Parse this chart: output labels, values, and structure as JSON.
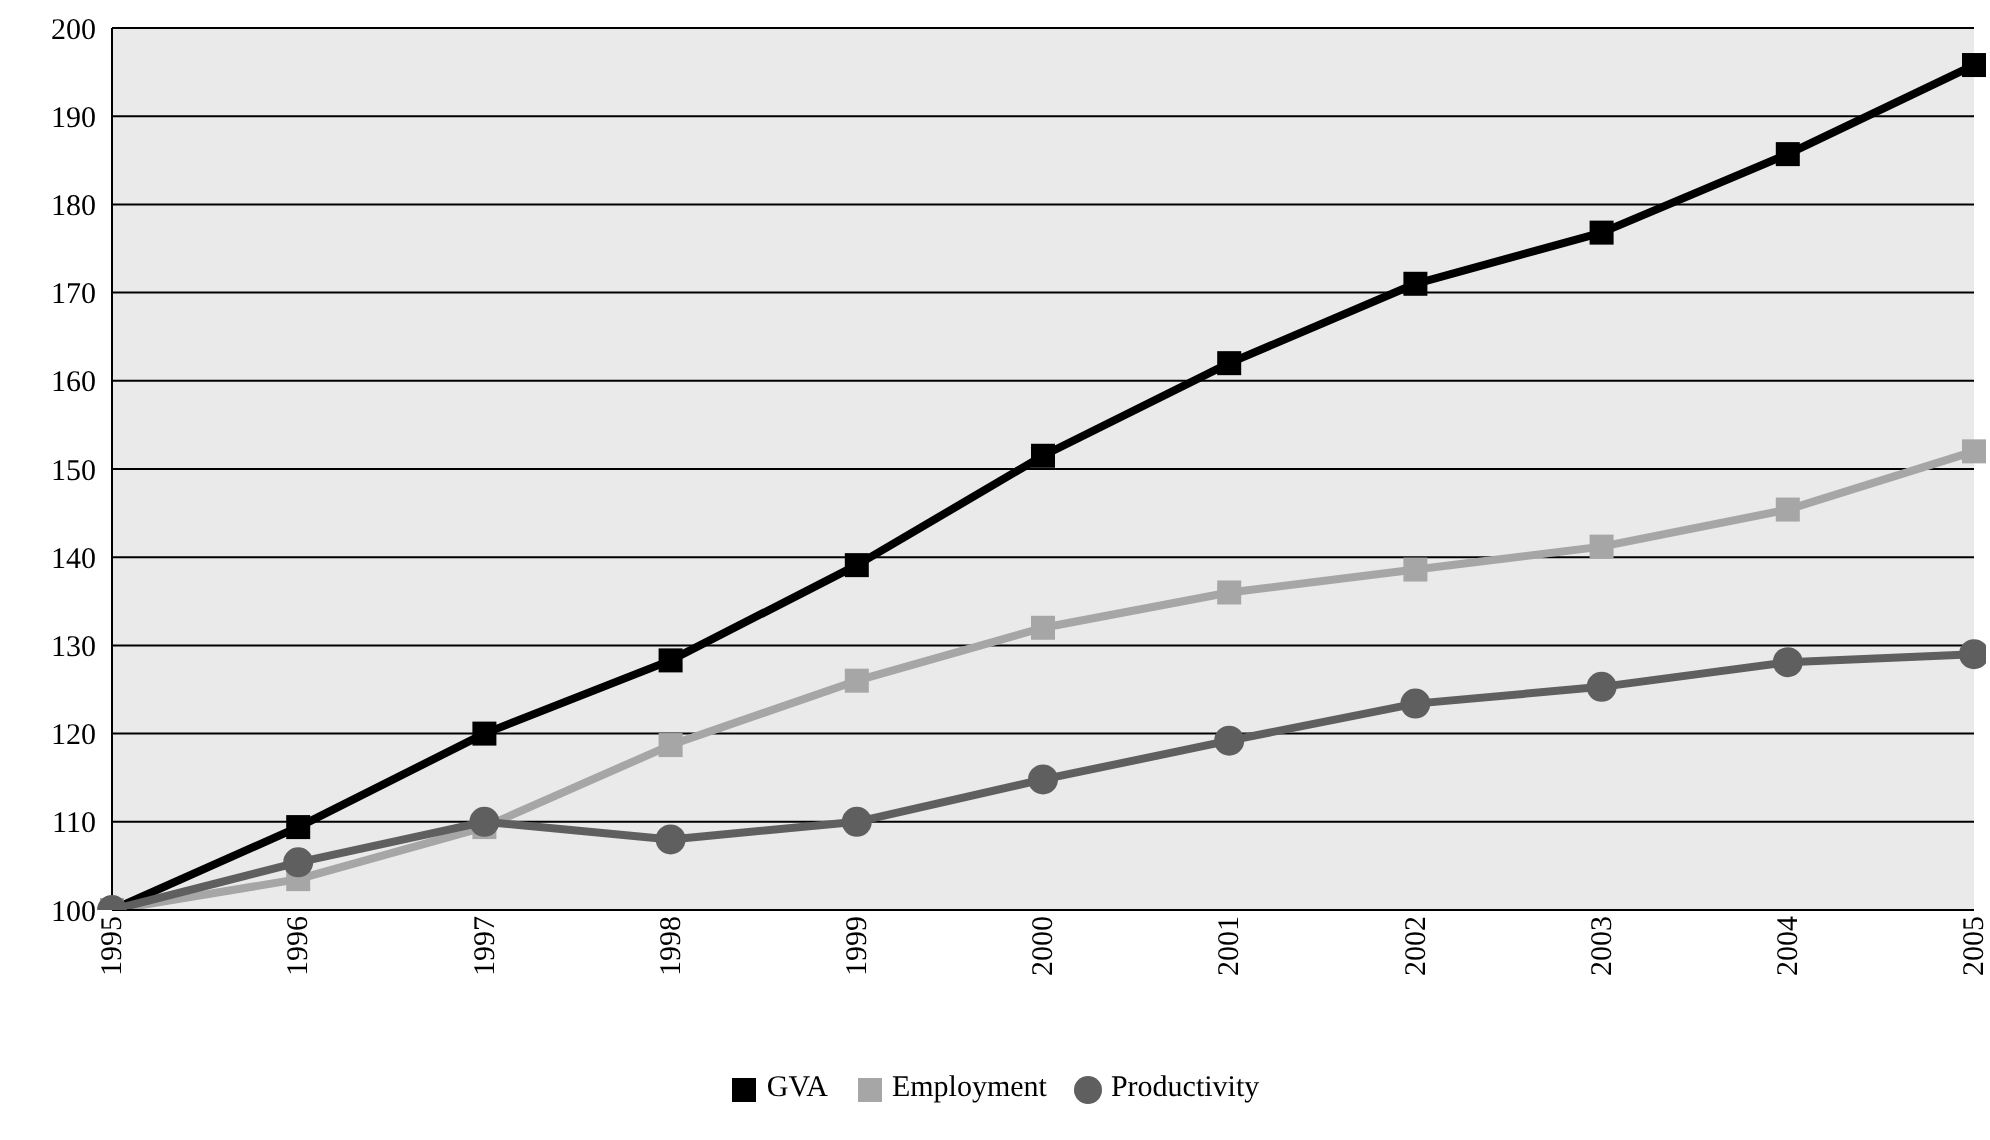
{
  "chart_data": {
    "type": "line",
    "categories": [
      "1995",
      "1996",
      "1997",
      "1998",
      "1999",
      "2000",
      "2001",
      "2002",
      "2003",
      "2004",
      "2005"
    ],
    "series": [
      {
        "name": "GVA",
        "color": "#000000",
        "marker": "square",
        "values": [
          100,
          109.4,
          120,
          128.3,
          139.1,
          151.5,
          162,
          171,
          176.8,
          185.7,
          195.8
        ]
      },
      {
        "name": "Employment",
        "color": "#a6a6a6",
        "marker": "square",
        "values": [
          100,
          103.5,
          109.4,
          118.7,
          126,
          132,
          136,
          138.6,
          141.2,
          145.4,
          152
        ]
      },
      {
        "name": "Productivity",
        "color": "#5f5f5f",
        "marker": "circle",
        "values": [
          100,
          105.4,
          110,
          108,
          110,
          114.8,
          119.2,
          123.4,
          125.3,
          128.1,
          129
        ]
      }
    ],
    "ylim": [
      100,
      200
    ],
    "yticks": [
      100,
      110,
      120,
      130,
      140,
      150,
      160,
      170,
      180,
      190,
      200
    ],
    "grid": "y",
    "legend": "bottom",
    "line_style": "solid"
  }
}
